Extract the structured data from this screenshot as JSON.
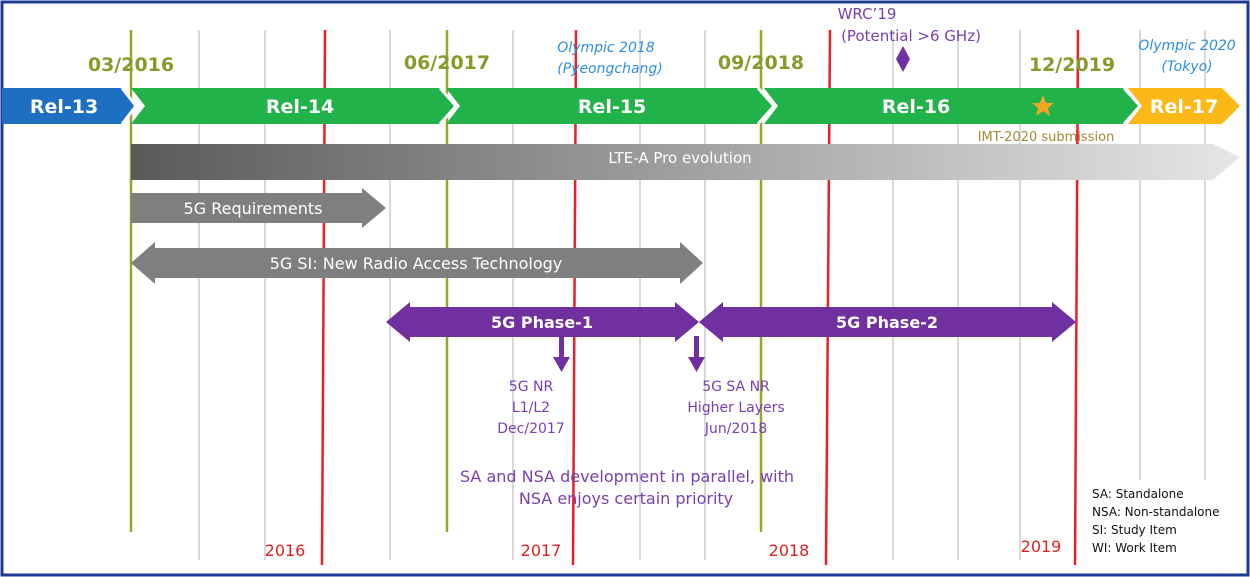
{
  "milestones": [
    "03/2016",
    "06/2017",
    "09/2018",
    "12/2019"
  ],
  "releases": [
    {
      "label": "Rel-13",
      "color": "#1e6fc2"
    },
    {
      "label": "Rel-14",
      "color": "#21b24a"
    },
    {
      "label": "Rel-15",
      "color": "#21b24a"
    },
    {
      "label": "Rel-16",
      "color": "#21b24a"
    },
    {
      "label": "Rel-17",
      "color": "#fbb817"
    }
  ],
  "olympics": [
    {
      "line1": "Olympic 2018",
      "line2": "(Pyeongchang)"
    },
    {
      "line1": "Olympic 2020",
      "line2": "(Tokyo)"
    }
  ],
  "wrc": {
    "line1": "WRC’19",
    "line2": "(Potential >6 GHz)"
  },
  "imt_submission": "IMT-2020 submission",
  "lte_evolution": "LTE-A Pro evolution",
  "requirements": "5G Requirements",
  "study_item": "5G SI: New Radio Access Technology",
  "phase1": "5G Phase-1",
  "phase2": "5G Phase-2",
  "nr_note": {
    "line1": "5G NR",
    "line2": "L1/L2",
    "line3": "Dec/2017"
  },
  "sa_note": {
    "line1": "5G SA NR",
    "line2": "Higher Layers",
    "line3": "Jun/2018"
  },
  "parallel_note": {
    "line1": "SA and NSA development in parallel, with",
    "line2": "NSA enjoys certain priority"
  },
  "years": [
    "2016",
    "2017",
    "2018",
    "2019"
  ],
  "legend": [
    "SA: Standalone",
    "NSA: Non-standalone",
    "SI: Study Item",
    "WI: Work Item"
  ],
  "colors": {
    "purple": "#7030a0",
    "gray": "#7f7f7f",
    "olive": "#9aa52a",
    "red": "#e8202a",
    "star": "#f5a623"
  }
}
